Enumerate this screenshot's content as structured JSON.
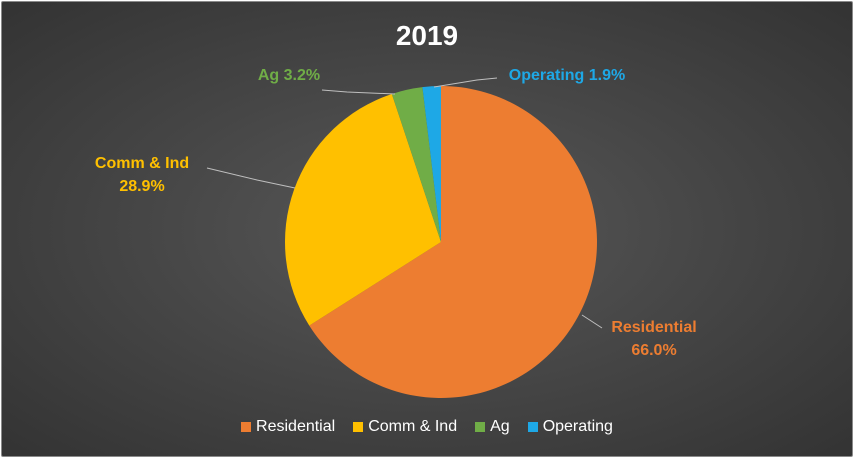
{
  "chart_data": {
    "type": "pie",
    "title": "2019",
    "slices": [
      {
        "name": "Residential",
        "value": 66.0,
        "label": "66.0%",
        "color": "#ED7D31"
      },
      {
        "name": "Comm & Ind",
        "value": 28.9,
        "label": "28.9%",
        "color": "#FFC000"
      },
      {
        "name": "Ag",
        "value": 3.2,
        "label": "3.2%",
        "color": "#70AD47"
      },
      {
        "name": "Operating",
        "value": 1.9,
        "label": "1.9%",
        "color": "#1EA8E6"
      }
    ],
    "legend": {
      "position": "bottom",
      "entries": [
        "Residential",
        "Comm & Ind",
        "Ag",
        "Operating"
      ]
    },
    "background_color": "#404040"
  }
}
